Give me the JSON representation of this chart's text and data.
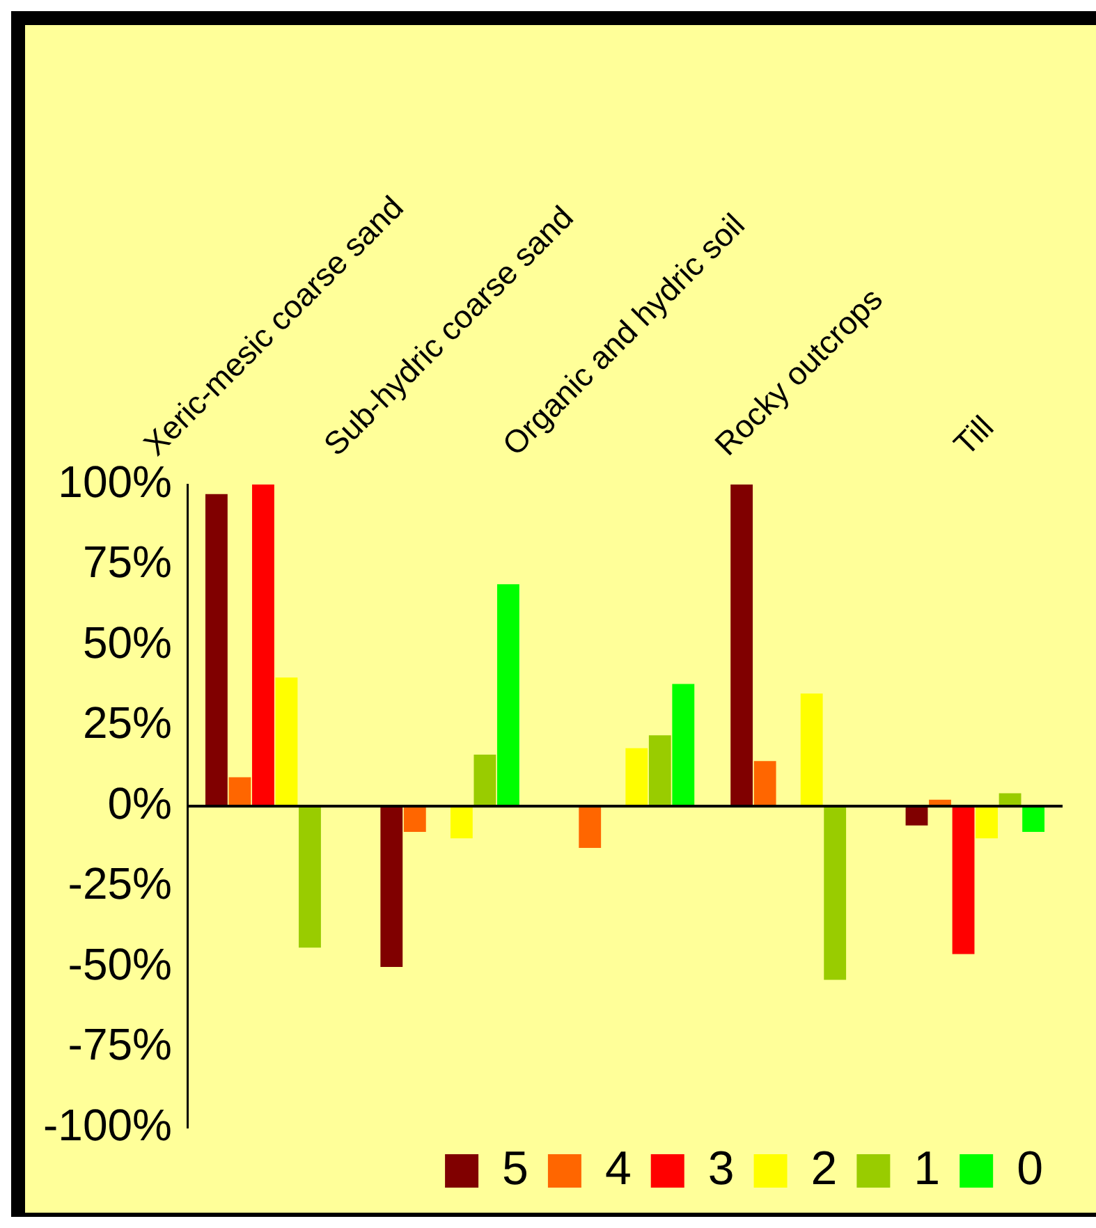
{
  "chart_data": {
    "type": "bar",
    "categories": [
      "Xeric-mesic coarse sand",
      "Sub-hydric coarse sand",
      "Organic and hydric soil",
      "Rocky outcrops",
      "Till"
    ],
    "series": [
      {
        "name": "5",
        "color": "#800000",
        "values": [
          97,
          -50,
          null,
          100,
          -6
        ]
      },
      {
        "name": "4",
        "color": "#ff6600",
        "values": [
          9,
          -8,
          -13,
          14,
          2
        ]
      },
      {
        "name": "3",
        "color": "#ff0000",
        "values": [
          100,
          null,
          null,
          null,
          -46
        ]
      },
      {
        "name": "2",
        "color": "#ffff00",
        "values": [
          40,
          -10,
          18,
          35,
          -10
        ]
      },
      {
        "name": "1",
        "color": "#99cc00",
        "values": [
          -44,
          16,
          22,
          -54,
          4
        ]
      },
      {
        "name": "0",
        "color": "#00ff00",
        "values": [
          null,
          69,
          38,
          null,
          -8
        ]
      }
    ],
    "ylim": [
      -100,
      100
    ],
    "yticks": [
      {
        "value": -100,
        "label": "-100%"
      },
      {
        "value": -75,
        "label": "-75%"
      },
      {
        "value": -50,
        "label": "-50%"
      },
      {
        "value": -25,
        "label": "-25%"
      },
      {
        "value": 0,
        "label": "0%"
      },
      {
        "value": 25,
        "label": "25%"
      },
      {
        "value": 50,
        "label": "50%"
      },
      {
        "value": 75,
        "label": "75%"
      },
      {
        "value": 100,
        "label": "100%"
      }
    ],
    "ref_lines": [
      {
        "axis": "y",
        "value": 0,
        "color": "#000000"
      }
    ],
    "grid": false,
    "legend": "bottom"
  }
}
